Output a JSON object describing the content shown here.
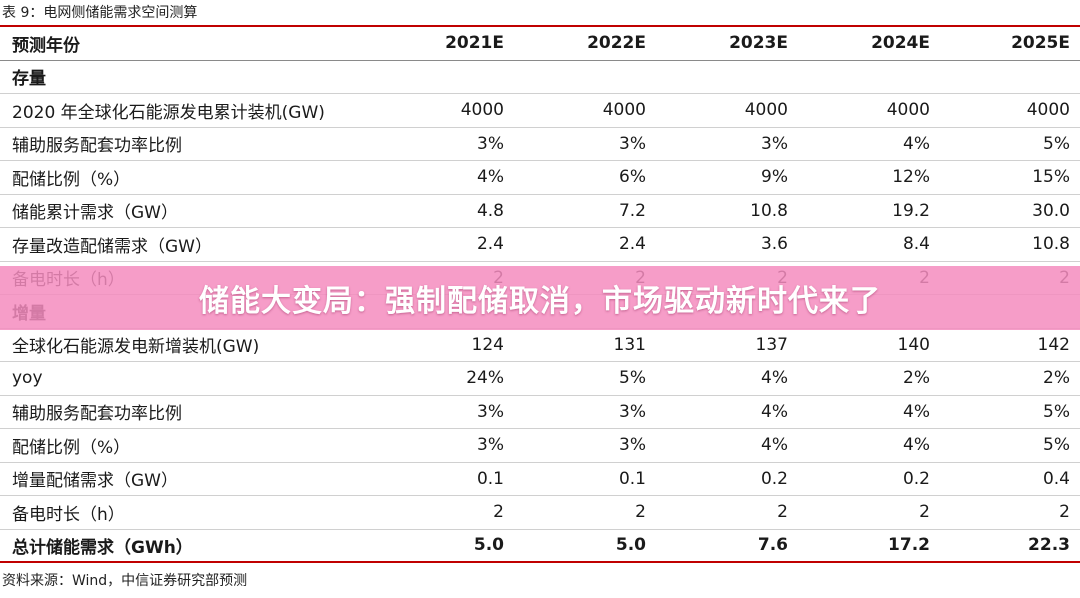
{
  "caption": "表 9：电网侧储能需求空间测算",
  "columns": [
    "预测年份",
    "2021E",
    "2022E",
    "2023E",
    "2024E",
    "2025E"
  ],
  "rows": [
    {
      "type": "section",
      "label": "存量",
      "values": [
        "",
        "",
        "",
        "",
        ""
      ]
    },
    {
      "type": "data",
      "label": "2020 年全球化石能源发电累计装机(GW)",
      "values": [
        "4000",
        "4000",
        "4000",
        "4000",
        "4000"
      ]
    },
    {
      "type": "data",
      "label": "辅助服务配套功率比例",
      "values": [
        "3%",
        "3%",
        "3%",
        "4%",
        "5%"
      ]
    },
    {
      "type": "data",
      "label": "配储比例（%）",
      "values": [
        "4%",
        "6%",
        "9%",
        "12%",
        "15%"
      ]
    },
    {
      "type": "data",
      "label": "储能累计需求（GW）",
      "values": [
        "4.8",
        "7.2",
        "10.8",
        "19.2",
        "30.0"
      ]
    },
    {
      "type": "data",
      "label": "存量改造配储需求（GW）",
      "values": [
        "2.4",
        "2.4",
        "3.6",
        "8.4",
        "10.8"
      ]
    },
    {
      "type": "data",
      "label": "备电时长（h）",
      "values": [
        "2",
        "2",
        "2",
        "2",
        "2"
      ]
    },
    {
      "type": "section",
      "label": "增量",
      "values": [
        "",
        "",
        "",
        "",
        ""
      ]
    },
    {
      "type": "data",
      "label": "全球化石能源发电新增装机(GW)",
      "values": [
        "124",
        "131",
        "137",
        "140",
        "142"
      ]
    },
    {
      "type": "data",
      "label": "yoy",
      "values": [
        "24%",
        "5%",
        "4%",
        "2%",
        "2%"
      ]
    },
    {
      "type": "data",
      "label": "辅助服务配套功率比例",
      "values": [
        "3%",
        "3%",
        "4%",
        "4%",
        "5%"
      ]
    },
    {
      "type": "data",
      "label": "配储比例（%）",
      "values": [
        "3%",
        "3%",
        "4%",
        "4%",
        "5%"
      ]
    },
    {
      "type": "data",
      "label": "增量配储需求（GW）",
      "values": [
        "0.1",
        "0.1",
        "0.2",
        "0.2",
        "0.4"
      ]
    },
    {
      "type": "data",
      "label": "备电时长（h）",
      "values": [
        "2",
        "2",
        "2",
        "2",
        "2"
      ]
    },
    {
      "type": "total",
      "label": "总计储能需求（GWh）",
      "values": [
        "5.0",
        "5.0",
        "7.6",
        "17.2",
        "22.3"
      ]
    }
  ],
  "source": "资料来源：Wind，中信证券研究部预测",
  "banner": {
    "text": "储能大变局：强制配储取消，市场驱动新时代来了",
    "color": "#f58cbe"
  }
}
